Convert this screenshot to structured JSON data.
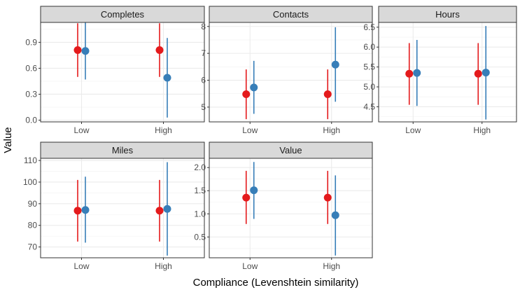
{
  "chart_data": {
    "type": "scatter",
    "xlabel": "Compliance (Levenshtein similarity)",
    "ylabel": "Value",
    "categories": [
      "Low",
      "High"
    ],
    "grid": true,
    "legend": "none",
    "series_colors": [
      "#e41a1c",
      "#377eb8"
    ],
    "panels": [
      {
        "title": "Completes",
        "ylim": [
          -0.02,
          1.13
        ],
        "yticks": [
          "0.0",
          "0.3",
          "0.6",
          "0.9"
        ],
        "series": [
          {
            "color": "#e41a1c",
            "values": [
              0.81,
              0.81
            ],
            "lower": [
              0.5,
              0.5
            ],
            "upper": [
              1.12,
              1.12
            ]
          },
          {
            "color": "#377eb8",
            "values": [
              0.8,
              0.49
            ],
            "lower": [
              0.47,
              0.03
            ],
            "upper": [
              1.13,
              0.95
            ]
          }
        ]
      },
      {
        "title": "Contacts",
        "ylim": [
          4.45,
          8.15
        ],
        "yticks": [
          "5",
          "6",
          "7",
          "8"
        ],
        "series": [
          {
            "color": "#e41a1c",
            "values": [
              5.48,
              5.48
            ],
            "lower": [
              4.55,
              4.55
            ],
            "upper": [
              6.4,
              6.4
            ]
          },
          {
            "color": "#377eb8",
            "values": [
              5.73,
              6.58
            ],
            "lower": [
              4.75,
              5.2
            ],
            "upper": [
              6.72,
              7.97
            ]
          }
        ]
      },
      {
        "title": "Hours",
        "ylim": [
          4.12,
          6.62
        ],
        "yticks": [
          "4.5",
          "5.0",
          "5.5",
          "6.0",
          "6.5"
        ],
        "series": [
          {
            "color": "#e41a1c",
            "values": [
              5.33,
              5.33
            ],
            "lower": [
              4.55,
              4.55
            ],
            "upper": [
              6.1,
              6.1
            ]
          },
          {
            "color": "#377eb8",
            "values": [
              5.35,
              5.36
            ],
            "lower": [
              4.52,
              4.18
            ],
            "upper": [
              6.18,
              6.53
            ]
          }
        ]
      },
      {
        "title": "Miles",
        "ylim": [
          65,
          111
        ],
        "yticks": [
          "70",
          "80",
          "90",
          "100",
          "110"
        ],
        "series": [
          {
            "color": "#e41a1c",
            "values": [
              86.8,
              86.8
            ],
            "lower": [
              72.5,
              72.5
            ],
            "upper": [
              101.0,
              101.0
            ]
          },
          {
            "color": "#377eb8",
            "values": [
              87.1,
              87.6
            ],
            "lower": [
              72.0,
              66.0
            ],
            "upper": [
              102.5,
              109.2
            ]
          }
        ]
      },
      {
        "title": "Value",
        "ylim": [
          0.05,
          2.2
        ],
        "yticks": [
          "0.5",
          "1.0",
          "1.5",
          "2.0"
        ],
        "series": [
          {
            "color": "#e41a1c",
            "values": [
              1.35,
              1.35
            ],
            "lower": [
              0.78,
              0.78
            ],
            "upper": [
              1.93,
              1.93
            ]
          },
          {
            "color": "#377eb8",
            "values": [
              1.51,
              0.97
            ],
            "lower": [
              0.89,
              0.1
            ],
            "upper": [
              2.12,
              1.83
            ]
          }
        ]
      }
    ]
  }
}
